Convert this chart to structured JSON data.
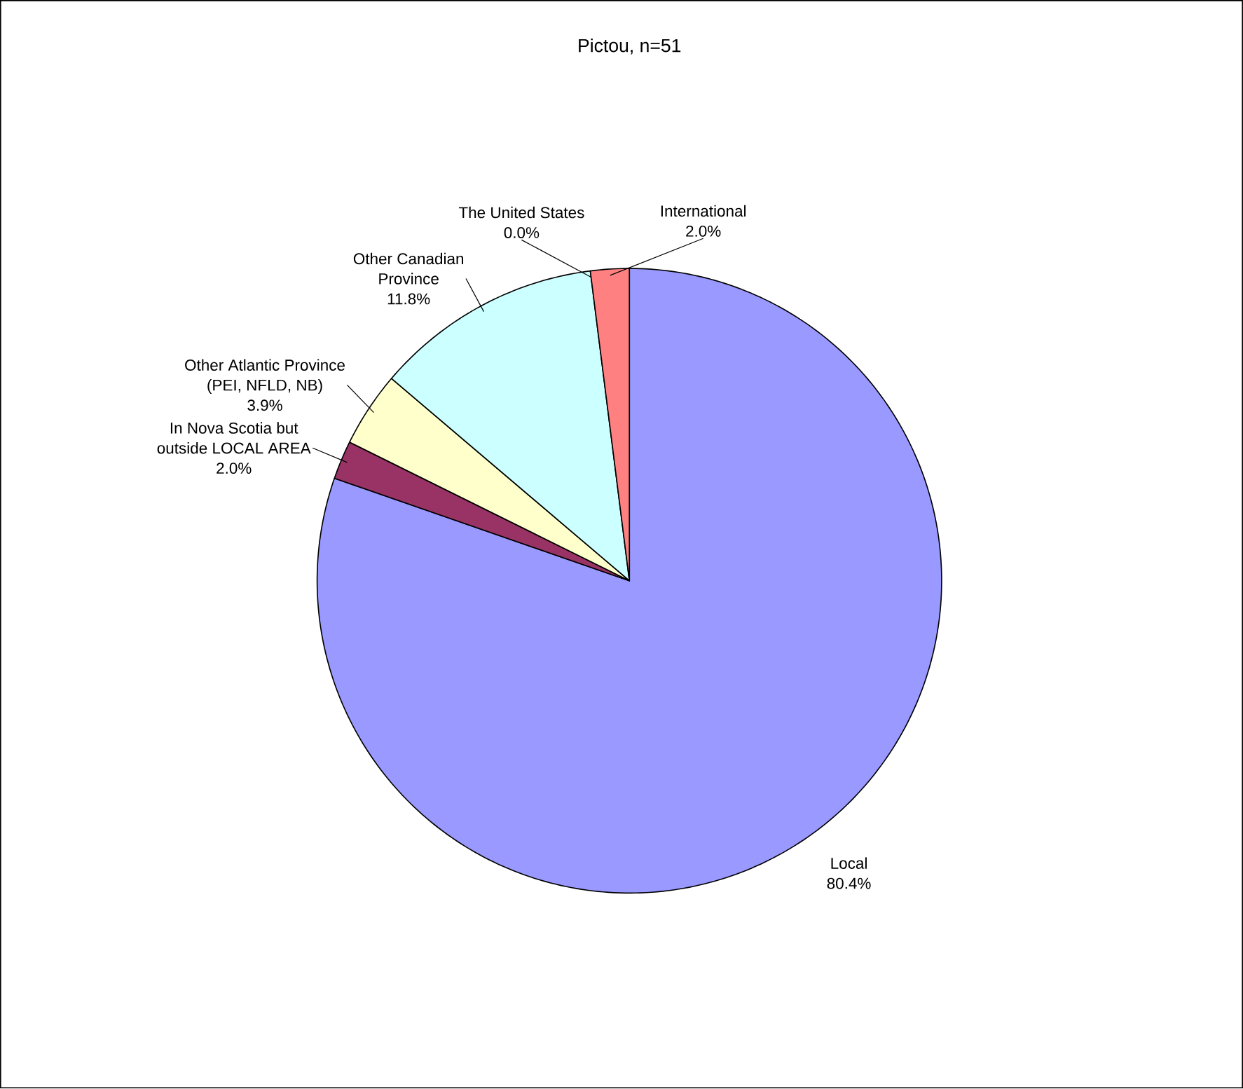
{
  "chart_data": {
    "type": "pie",
    "title": "Pictou, n=51",
    "categories": [
      "Local",
      "In Nova Scotia but outside LOCAL AREA",
      "Other Atlantic Province (PEI, NFLD, NB)",
      "Other Canadian Province",
      "The United States",
      "International"
    ],
    "values": [
      80.4,
      2.0,
      3.9,
      11.8,
      0.0,
      2.0
    ],
    "value_labels": [
      "80.4%",
      "2.0%",
      "3.9%",
      "11.8%",
      "0.0%",
      "2.0%"
    ],
    "colors": [
      "#9999ff",
      "#993366",
      "#ffffcc",
      "#ccffff",
      "#660066",
      "#ff8080"
    ]
  }
}
